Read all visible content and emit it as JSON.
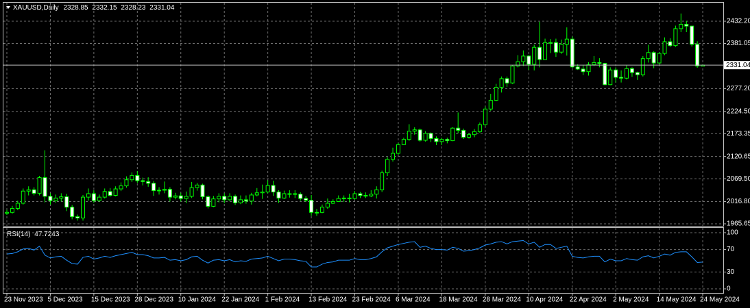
{
  "chart_data": [
    {
      "type": "candlestick",
      "symbol": "XAUUSD,Daily",
      "categories": [
        "23 Nov 2023",
        null,
        null,
        null,
        null,
        null,
        null,
        null,
        "5 Dec 2023",
        null,
        null,
        null,
        null,
        null,
        null,
        null,
        "15 Dec 2023",
        null,
        null,
        null,
        null,
        null,
        null,
        null,
        "28 Dec 2023",
        null,
        null,
        null,
        null,
        null,
        null,
        null,
        "10 Jan 2024",
        null,
        null,
        null,
        null,
        null,
        null,
        null,
        "22 Jan 2024",
        null,
        null,
        null,
        null,
        null,
        null,
        null,
        "1 Feb 2024",
        null,
        null,
        null,
        null,
        null,
        null,
        null,
        "13 Feb 2024",
        null,
        null,
        null,
        null,
        null,
        null,
        null,
        "23 Feb 2024",
        null,
        null,
        null,
        null,
        null,
        null,
        null,
        "6 Mar 2024",
        null,
        null,
        null,
        null,
        null,
        null,
        null,
        "18 Mar 2024",
        null,
        null,
        null,
        null,
        null,
        null,
        null,
        "28 Mar 2024",
        null,
        null,
        null,
        null,
        null,
        null,
        null,
        "10 Apr 2024",
        null,
        null,
        null,
        null,
        null,
        null,
        null,
        "22 Apr 2024",
        null,
        null,
        null,
        null,
        null,
        null,
        null,
        "2 May 2024",
        null,
        null,
        null,
        null,
        null,
        null,
        null,
        "14 May 2024",
        null,
        null,
        null,
        null,
        null,
        null,
        null,
        "24 May 2024"
      ],
      "open": [
        1990,
        1992,
        2001,
        2013,
        2041,
        2044,
        2036,
        2072,
        2029,
        2019,
        2025,
        2028,
        2004,
        1982,
        1979,
        2027,
        2035,
        2019,
        2027,
        2040,
        2031,
        2046,
        2053,
        2067,
        2077,
        2065,
        2063,
        2059,
        2042,
        2043,
        2045,
        2027,
        2030,
        2024,
        2029,
        2049,
        2055,
        2028,
        2006,
        2023,
        2029,
        2021,
        2029,
        2014,
        2021,
        2018,
        2032,
        2037,
        2039,
        2054,
        2039,
        2025,
        2035,
        2035,
        2034,
        2024,
        2020,
        1992,
        1992,
        2004,
        2013,
        2017,
        2024,
        2025,
        2024,
        2035,
        2031,
        2030,
        2034,
        2044,
        2083,
        2114,
        2128,
        2148,
        2160,
        2179,
        2182,
        2158,
        2174,
        2162,
        2155,
        2160,
        2157,
        2186,
        2181,
        2165,
        2171,
        2178,
        2194,
        2230,
        2250,
        2280,
        2300,
        2290,
        2329,
        2339,
        2352,
        2333,
        2372,
        2344,
        2383,
        2383,
        2361,
        2379,
        2391,
        2327,
        2322,
        2316,
        2332,
        2337,
        2335,
        2286,
        2320,
        2303,
        2301,
        2323,
        2314,
        2309,
        2346,
        2360,
        2336,
        2358,
        2385,
        2376,
        2415,
        2425,
        2421,
        2379,
        2328.85
      ],
      "high": [
        1998,
        2007,
        2019,
        2047,
        2052,
        2050,
        2076,
        2135,
        2036,
        2033,
        2036,
        2035,
        2009,
        1987,
        2032,
        2047,
        2043,
        2033,
        2047,
        2048,
        2052,
        2061,
        2075,
        2084,
        2087,
        2072,
        2073,
        2064,
        2050,
        2063,
        2050,
        2037,
        2037,
        2040,
        2062,
        2060,
        2058,
        2031,
        2030,
        2036,
        2036,
        2036,
        2033,
        2031,
        2031,
        2037,
        2048,
        2056,
        2066,
        2065,
        2043,
        2042,
        2043,
        2043,
        2038,
        2030,
        2032,
        2000,
        2010,
        2024,
        2022,
        2031,
        2031,
        2035,
        2041,
        2039,
        2038,
        2043,
        2052,
        2088,
        2119,
        2141,
        2152,
        2164,
        2195,
        2188,
        2185,
        2179,
        2176,
        2167,
        2164,
        2164,
        2188,
        2222,
        2185,
        2175,
        2184,
        2199,
        2236,
        2265,
        2288,
        2305,
        2305,
        2331,
        2354,
        2365,
        2354,
        2378,
        2431,
        2392,
        2391,
        2392,
        2390,
        2418,
        2397,
        2333,
        2331,
        2338,
        2352,
        2347,
        2336,
        2326,
        2326,
        2319,
        2331,
        2326,
        2316,
        2352,
        2378,
        2363,
        2361,
        2395,
        2393,
        2422,
        2450,
        2433,
        2422,
        2386,
        2332.15
      ],
      "low": [
        1986,
        1989,
        1997,
        2010,
        2031,
        2031,
        2031,
        2015,
        2010,
        2014,
        2017,
        1995,
        1976,
        1973,
        1973,
        2019,
        2014,
        2016,
        2024,
        2028,
        2029,
        2041,
        2049,
        2062,
        2060,
        2054,
        2051,
        2030,
        2033,
        2036,
        2017,
        2022,
        2017,
        2013,
        2025,
        2042,
        2022,
        2001,
        2004,
        2015,
        2013,
        2018,
        2009,
        2011,
        2012,
        2010,
        2029,
        2023,
        2036,
        2030,
        2014,
        2023,
        2026,
        2025,
        2019,
        2016,
        1984,
        1984,
        1990,
        2000,
        2011,
        2016,
        2016,
        2015,
        2021,
        2025,
        2025,
        2027,
        2024,
        2039,
        2076,
        2109,
        2125,
        2147,
        2157,
        2171,
        2155,
        2155,
        2154,
        2147,
        2147,
        2151,
        2156,
        2174,
        2161,
        2162,
        2165,
        2175,
        2190,
        2226,
        2248,
        2268,
        2281,
        2288,
        2326,
        2329,
        2320,
        2319,
        2326,
        2343,
        2359,
        2350,
        2357,
        2353,
        2324,
        2320,
        2308,
        2307,
        2329,
        2326,
        2285,
        2285,
        2291,
        2291,
        2298,
        2304,
        2297,
        2305,
        2337,
        2324,
        2333,
        2354,
        2373,
        2373,
        2407,
        2407,
        2374,
        2325,
        2328.23
      ],
      "close": [
        1992,
        2001,
        2013,
        2041,
        2044,
        2036,
        2072,
        2029,
        2019,
        2025,
        2028,
        2004,
        1982,
        1979,
        2027,
        2035,
        2019,
        2027,
        2040,
        2031,
        2046,
        2053,
        2067,
        2077,
        2065,
        2063,
        2059,
        2042,
        2043,
        2045,
        2027,
        2030,
        2024,
        2029,
        2049,
        2055,
        2028,
        2006,
        2023,
        2029,
        2021,
        2029,
        2014,
        2021,
        2018,
        2032,
        2037,
        2039,
        2054,
        2039,
        2025,
        2035,
        2035,
        2034,
        2024,
        2020,
        1992,
        1992,
        2004,
        2013,
        2017,
        2024,
        2025,
        2024,
        2035,
        2031,
        2030,
        2034,
        2044,
        2083,
        2114,
        2128,
        2148,
        2160,
        2179,
        2182,
        2158,
        2174,
        2162,
        2155,
        2160,
        2157,
        2186,
        2181,
        2165,
        2171,
        2178,
        2194,
        2230,
        2250,
        2280,
        2300,
        2290,
        2329,
        2339,
        2352,
        2333,
        2372,
        2344,
        2383,
        2383,
        2361,
        2379,
        2391,
        2327,
        2322,
        2316,
        2332,
        2337,
        2335,
        2286,
        2320,
        2303,
        2301,
        2323,
        2314,
        2309,
        2346,
        2360,
        2336,
        2358,
        2385,
        2376,
        2415,
        2425,
        2421,
        2379,
        2329,
        2331.04
      ],
      "ylim": [
        1960.92,
        2474.76
      ],
      "yticks": [
        1965.65,
        {
          "value": 2016.8,
          "label": "2016.80"
        },
        {
          "value": 2069.5,
          "label": "2069.50"
        },
        2120.65,
        2173.35,
        {
          "value": 2224.5,
          "label": "2224.50"
        },
        {
          "value": 2277.2,
          "label": "2277.20"
        },
        2381.05,
        {
          "value": 2432.2,
          "label": "2432.20"
        }
      ],
      "grid": true,
      "up_color": "#000000",
      "down_color": "#ffffff",
      "line_color": "#00ff00"
    },
    {
      "type": "line",
      "series": [
        {
          "name": "RSI(14)",
          "color": "#1e90ff",
          "values": [
            62,
            63,
            66,
            71,
            72,
            69,
            76,
            60,
            55,
            57,
            58,
            51,
            45,
            44,
            56,
            58,
            53,
            55,
            58,
            56,
            59,
            61,
            63,
            65,
            61,
            61,
            59,
            55,
            55,
            56,
            51,
            52,
            50,
            52,
            57,
            58,
            51,
            46,
            51,
            52,
            50,
            52,
            48,
            50,
            49,
            53,
            54,
            55,
            58,
            54,
            50,
            53,
            53,
            52,
            50,
            49,
            39,
            39,
            44,
            47,
            48,
            51,
            51,
            51,
            54,
            52,
            52,
            54,
            57,
            66,
            73,
            76,
            79,
            81,
            83,
            84,
            74,
            76,
            72,
            70,
            70,
            69,
            74,
            72,
            67,
            68,
            70,
            73,
            78,
            80,
            83,
            84,
            80,
            84,
            85,
            86,
            80,
            83,
            74,
            79,
            79,
            72,
            74,
            76,
            58,
            56,
            55,
            57,
            58,
            58,
            48,
            53,
            50,
            50,
            54,
            52,
            51,
            57,
            59,
            55,
            58,
            62,
            60,
            65,
            66,
            66,
            57,
            47,
            47.7243
          ]
        }
      ],
      "ylim": [
        -7.3,
        108.5
      ],
      "yticks": [
        0,
        30,
        70,
        100
      ],
      "grid": true
    }
  ]
}
